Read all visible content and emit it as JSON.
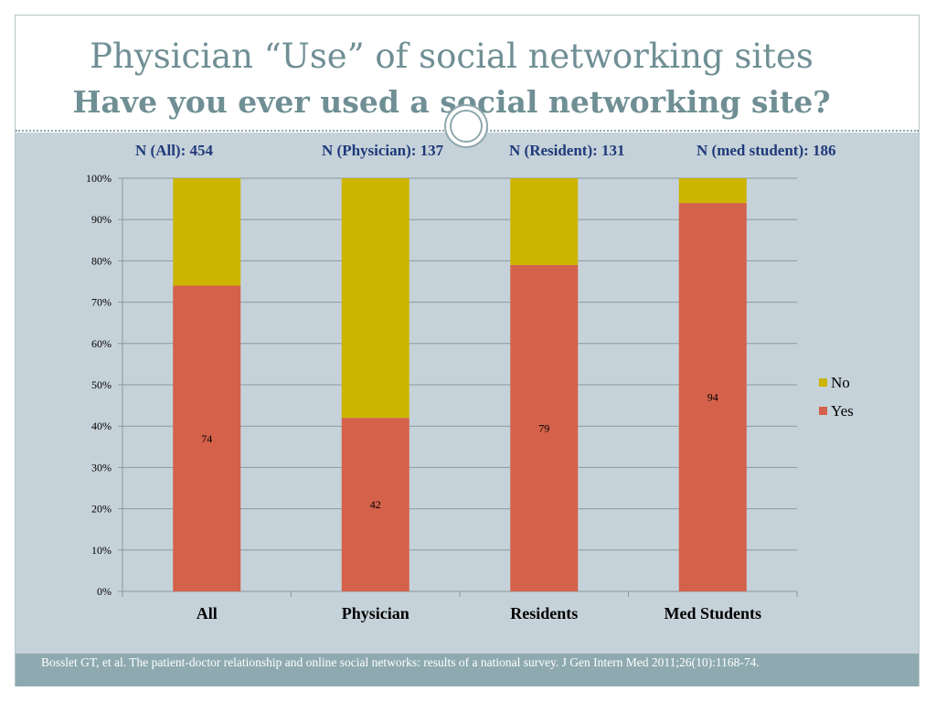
{
  "slide": {
    "title_line1": "Physician “Use” of social networking sites",
    "title_line2": "Have you ever used a social networking site?"
  },
  "sample_sizes": [
    "N (All): 454",
    "N (Physician): 137",
    "N (Resident): 131",
    "N (med student): 186"
  ],
  "colors": {
    "yes": "#d4614a",
    "no": "#ccb400",
    "grid": "#8a9aa0",
    "text": "#1f3a7a"
  },
  "chart_data": {
    "type": "bar",
    "stacked": true,
    "categories": [
      "All",
      "Physician",
      "Residents",
      "Med Students"
    ],
    "series": [
      {
        "name": "Yes",
        "values": [
          74,
          42,
          79,
          94
        ]
      },
      {
        "name": "No",
        "values": [
          26,
          58,
          21,
          6
        ]
      }
    ],
    "data_labels": [
      "74",
      "42",
      "79",
      "94"
    ],
    "ylim": [
      0,
      100
    ],
    "yticks": [
      "0%",
      "10%",
      "20%",
      "30%",
      "40%",
      "50%",
      "60%",
      "70%",
      "80%",
      "90%",
      "100%"
    ],
    "legend": [
      "No",
      "Yes"
    ],
    "legend_position": "right",
    "grid": true
  },
  "footer": {
    "citation": "Bosslet GT, et al. The patient-doctor relationship and online social networks: results of a national survey.  J Gen Intern Med 2011;26(10):1168-74."
  }
}
